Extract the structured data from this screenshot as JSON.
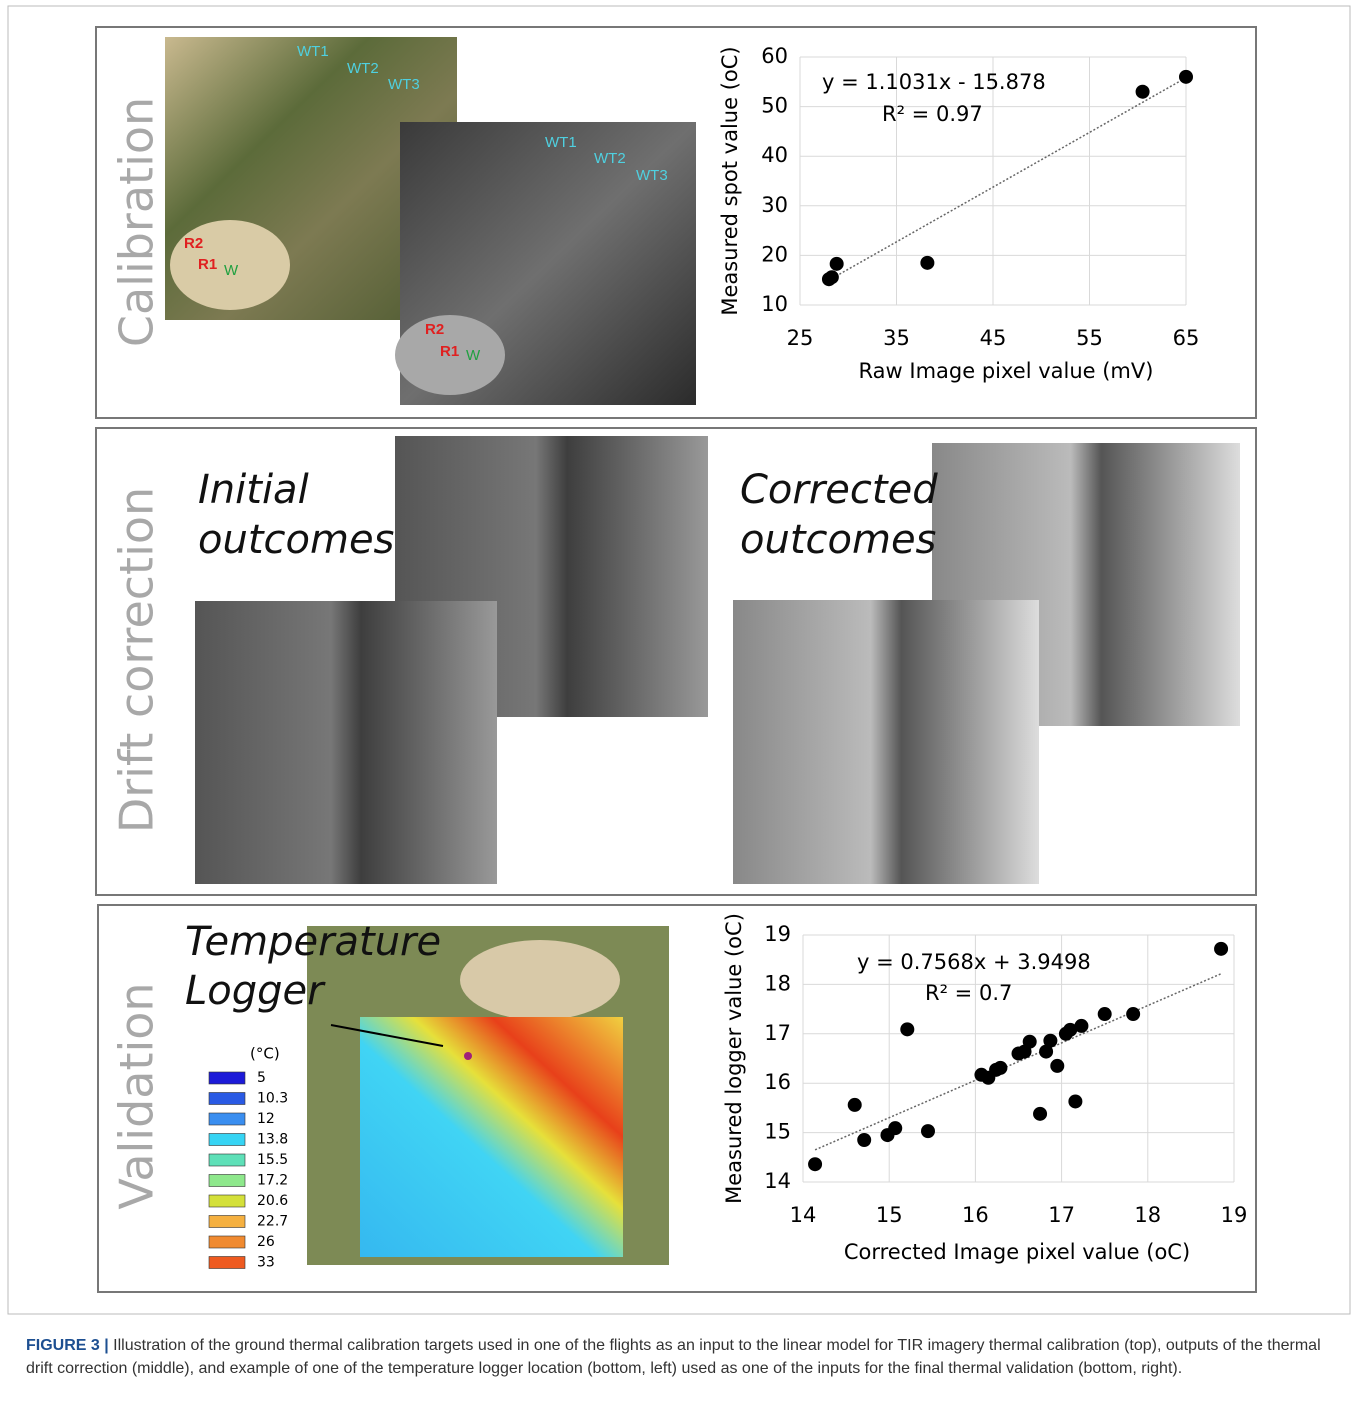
{
  "panels": {
    "calibration": {
      "label": "Calibration",
      "rgb_labels": [
        "WT1",
        "WT2",
        "WT3",
        "R2",
        "R1",
        "W"
      ],
      "tir_labels": [
        "WT1",
        "WT2",
        "WT3",
        "R2",
        "R1",
        "W"
      ]
    },
    "drift": {
      "label": "Drift correction",
      "initial": [
        "Initial",
        "outcomes"
      ],
      "corrected": [
        "Corrected",
        "outcomes"
      ]
    },
    "validation": {
      "label": "Validation",
      "logger": [
        "Temperature",
        "Logger"
      ],
      "colorbar": {
        "unit": "(°C)",
        "entries": [
          {
            "label": "5",
            "color": "#1c1ad8"
          },
          {
            "label": "10.3",
            "color": "#2a5ae4"
          },
          {
            "label": "12",
            "color": "#3a8ef0"
          },
          {
            "label": "13.8",
            "color": "#36d4f4"
          },
          {
            "label": "15.5",
            "color": "#5ee0b8"
          },
          {
            "label": "17.2",
            "color": "#8ee88c"
          },
          {
            "label": "20.6",
            "color": "#d4e03a"
          },
          {
            "label": "22.7",
            "color": "#f5b040"
          },
          {
            "label": "26",
            "color": "#f08a30"
          },
          {
            "label": "33",
            "color": "#ee5a20"
          }
        ]
      }
    }
  },
  "chart_data": [
    {
      "type": "scatter",
      "x_label": "Raw Image pixel value (mV)",
      "y_label": "Measured spot value (oC)",
      "annotations": [
        "y = 1.1031x - 15.878",
        "R² = 0.97"
      ],
      "trendline": {
        "slope": 1.1031,
        "intercept": -15.878
      },
      "x": [
        28,
        28.3,
        28.8,
        38.2,
        60.5,
        65
      ],
      "values": [
        15.2,
        15.6,
        18.3,
        18.5,
        53,
        56
      ],
      "color": "#000000",
      "xlim": [
        25,
        65
      ],
      "ylim": [
        10,
        60
      ],
      "xticks": [
        25,
        35,
        45,
        55,
        65
      ],
      "yticks": [
        10,
        20,
        30,
        40,
        50,
        60
      ],
      "grid": true
    },
    {
      "type": "scatter",
      "x_label": "Corrected Image pixel value (oC)",
      "y_label": "Measured logger value (oC)",
      "annotations": [
        "y = 0.7568x + 3.9498",
        "R² = 0.7"
      ],
      "trendline": {
        "slope": 0.7568,
        "intercept": 3.9498
      },
      "x": [
        14.14,
        14.6,
        14.71,
        14.98,
        15.07,
        15.21,
        15.45,
        16.07,
        16.15,
        16.24,
        16.29,
        16.5,
        16.57,
        16.63,
        16.75,
        16.82,
        16.87,
        16.95,
        17.05,
        17.1,
        17.16,
        17.23,
        17.5,
        17.83,
        18.85
      ],
      "values": [
        14.36,
        15.56,
        14.85,
        14.95,
        15.09,
        17.09,
        15.03,
        16.17,
        16.11,
        16.27,
        16.31,
        16.6,
        16.64,
        16.84,
        15.38,
        16.64,
        16.86,
        16.35,
        17,
        17.08,
        15.63,
        17.16,
        17.4,
        17.4,
        18.72
      ],
      "color": "#000000",
      "xlim": [
        14,
        19
      ],
      "ylim": [
        14,
        19
      ],
      "xticks": [
        14,
        15,
        16,
        17,
        18,
        19
      ],
      "yticks": [
        14,
        15,
        16,
        17,
        18,
        19
      ],
      "grid": true
    }
  ],
  "caption": {
    "label": "FIGURE 3 |",
    "text": "Illustration of the ground thermal calibration targets used in one of the flights as an input to the linear model for TIR imagery thermal calibration (top), outputs of the thermal drift correction (middle), and example of one of the temperature logger location (bottom, left) used as one of the inputs for the final thermal validation (bottom, right)."
  }
}
